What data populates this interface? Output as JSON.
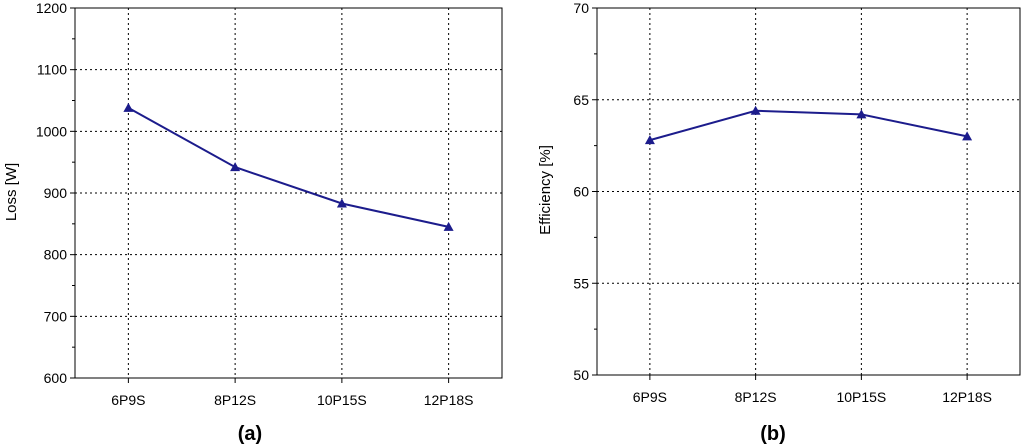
{
  "chart_data": [
    {
      "panel_label": "(a)",
      "type": "line",
      "categories": [
        "6P9S",
        "8P12S",
        "10P15S",
        "12P18S"
      ],
      "values": [
        1038,
        942,
        883,
        845
      ],
      "xlabel": "",
      "ylabel": "Loss [W]",
      "ylim": [
        600,
        1200
      ],
      "yticks": [
        600,
        700,
        800,
        900,
        1000,
        1100,
        1200
      ],
      "grid": true,
      "marker": "triangle",
      "line_color": "#1c1c8c"
    },
    {
      "panel_label": "(b)",
      "type": "line",
      "categories": [
        "6P9S",
        "8P12S",
        "10P15S",
        "12P18S"
      ],
      "values": [
        62.8,
        64.4,
        64.2,
        63.0
      ],
      "xlabel": "",
      "ylabel": "Efficiency [%]",
      "ylim": [
        50,
        70
      ],
      "yticks": [
        50,
        55,
        60,
        65,
        70
      ],
      "grid": true,
      "marker": "triangle",
      "line_color": "#1c1c8c"
    }
  ]
}
